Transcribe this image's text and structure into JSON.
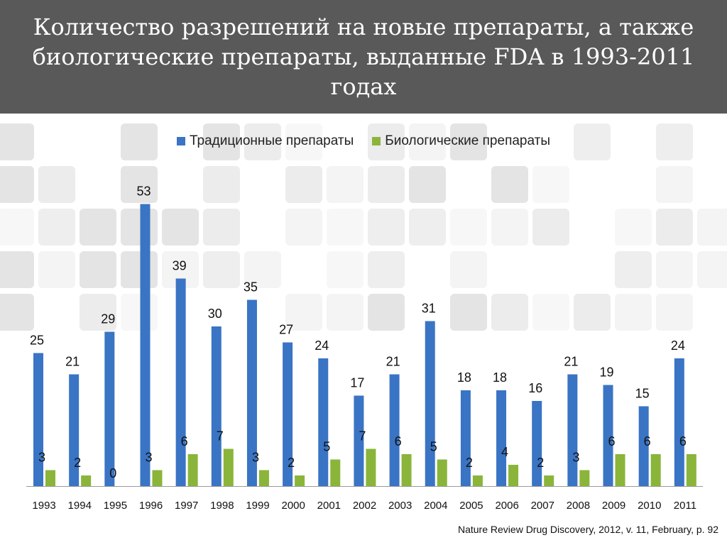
{
  "title": "Количество разрешений на новые препараты, а также биологические препараты, выданные FDA в 1993-2011 годах",
  "source": "Nature Review Drug Discovery, 2012, v. 11, February, p. 92",
  "colors": {
    "traditional": "#3a74c4",
    "biologic": "#8ab53a",
    "header_bg": "#595959"
  },
  "chart_data": {
    "type": "bar",
    "title": "",
    "xlabel": "",
    "ylabel": "",
    "legend_position": "top",
    "grid": false,
    "ylim": [
      0,
      55
    ],
    "categories": [
      "1993",
      "1994",
      "1995",
      "1996",
      "1997",
      "1998",
      "1999",
      "2000",
      "2001",
      "2002",
      "2003",
      "2004",
      "2005",
      "2006",
      "2007",
      "2008",
      "2009",
      "2010",
      "2011"
    ],
    "series": [
      {
        "name": "Традиционные препараты",
        "values": [
          25,
          21,
          29,
          53,
          39,
          30,
          35,
          27,
          24,
          17,
          21,
          31,
          18,
          18,
          16,
          21,
          19,
          15,
          24
        ]
      },
      {
        "name": "Биологические препараты",
        "values": [
          3,
          2,
          0,
          3,
          6,
          7,
          3,
          2,
          5,
          7,
          6,
          5,
          2,
          4,
          2,
          3,
          6,
          6,
          6
        ]
      }
    ]
  }
}
